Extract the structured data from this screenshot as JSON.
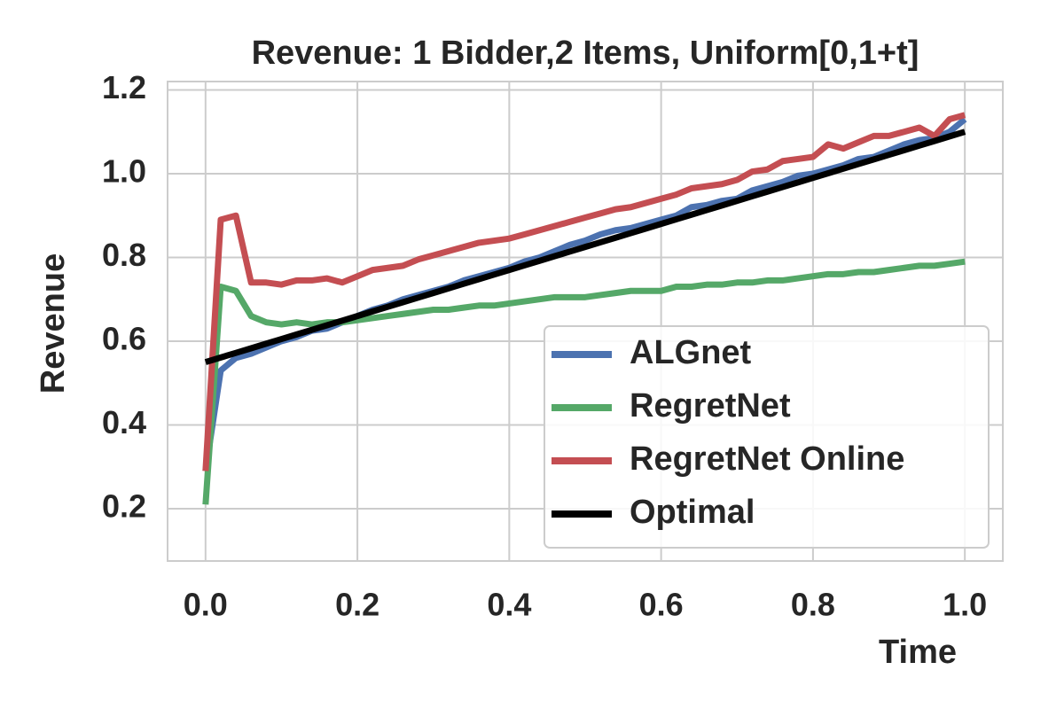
{
  "chart_data": {
    "type": "line",
    "title": "Revenue: 1 Bidder,2 Items, Uniform[0,1+t]",
    "x_label": "Time",
    "y_label": "Revenue",
    "x": [
      0,
      0.02,
      0.04,
      0.06,
      0.08,
      0.1,
      0.12,
      0.14,
      0.16,
      0.18,
      0.2,
      0.22,
      0.24,
      0.26,
      0.28,
      0.3,
      0.32,
      0.34,
      0.36,
      0.38,
      0.4,
      0.42,
      0.44,
      0.46,
      0.48,
      0.5,
      0.52,
      0.54,
      0.56,
      0.58,
      0.6,
      0.62,
      0.64,
      0.66,
      0.68,
      0.7,
      0.72,
      0.74,
      0.76,
      0.78,
      0.8,
      0.82,
      0.84,
      0.86,
      0.88,
      0.9,
      0.92,
      0.94,
      0.96,
      0.98,
      1.0
    ],
    "series": [
      {
        "name": "ALGnet",
        "color": "#4c72b0",
        "values": [
          0.29,
          0.53,
          0.56,
          0.57,
          0.585,
          0.6,
          0.61,
          0.625,
          0.63,
          0.645,
          0.66,
          0.675,
          0.685,
          0.7,
          0.71,
          0.72,
          0.73,
          0.745,
          0.755,
          0.765,
          0.775,
          0.79,
          0.8,
          0.815,
          0.83,
          0.84,
          0.855,
          0.865,
          0.87,
          0.88,
          0.89,
          0.9,
          0.92,
          0.925,
          0.935,
          0.94,
          0.96,
          0.97,
          0.98,
          0.995,
          1.0,
          1.01,
          1.02,
          1.035,
          1.04,
          1.055,
          1.07,
          1.08,
          1.085,
          1.1,
          1.13
        ]
      },
      {
        "name": "RegretNet",
        "color": "#55a868",
        "values": [
          0.21,
          0.73,
          0.72,
          0.66,
          0.645,
          0.64,
          0.645,
          0.64,
          0.645,
          0.645,
          0.65,
          0.655,
          0.66,
          0.665,
          0.67,
          0.675,
          0.675,
          0.68,
          0.685,
          0.685,
          0.69,
          0.695,
          0.7,
          0.705,
          0.705,
          0.705,
          0.71,
          0.715,
          0.72,
          0.72,
          0.72,
          0.73,
          0.73,
          0.735,
          0.735,
          0.74,
          0.74,
          0.745,
          0.745,
          0.75,
          0.755,
          0.76,
          0.76,
          0.765,
          0.765,
          0.77,
          0.775,
          0.78,
          0.78,
          0.785,
          0.79
        ]
      },
      {
        "name": "RegretNet Online",
        "color": "#c44e52",
        "values": [
          0.29,
          0.89,
          0.9,
          0.74,
          0.74,
          0.735,
          0.745,
          0.745,
          0.75,
          0.74,
          0.755,
          0.77,
          0.775,
          0.78,
          0.795,
          0.805,
          0.815,
          0.825,
          0.835,
          0.84,
          0.845,
          0.855,
          0.865,
          0.875,
          0.885,
          0.895,
          0.905,
          0.915,
          0.92,
          0.93,
          0.94,
          0.95,
          0.965,
          0.97,
          0.975,
          0.985,
          1.005,
          1.01,
          1.03,
          1.035,
          1.04,
          1.07,
          1.06,
          1.075,
          1.09,
          1.09,
          1.1,
          1.11,
          1.09,
          1.13,
          1.14
        ]
      },
      {
        "name": "Optimal",
        "color": "#000000",
        "values": [
          0.55,
          0.561,
          0.572,
          0.583,
          0.594,
          0.605,
          0.616,
          0.627,
          0.638,
          0.649,
          0.66,
          0.671,
          0.682,
          0.693,
          0.704,
          0.715,
          0.726,
          0.737,
          0.748,
          0.759,
          0.77,
          0.781,
          0.792,
          0.803,
          0.814,
          0.825,
          0.836,
          0.847,
          0.858,
          0.869,
          0.88,
          0.891,
          0.902,
          0.913,
          0.924,
          0.935,
          0.946,
          0.957,
          0.968,
          0.979,
          0.99,
          1.001,
          1.012,
          1.023,
          1.034,
          1.045,
          1.056,
          1.067,
          1.078,
          1.089,
          1.1
        ]
      }
    ],
    "xlim": [
      -0.05,
      1.05
    ],
    "ylim": [
      0.075,
      1.22
    ],
    "xticks": [
      {
        "value": 0,
        "label": "0.0"
      },
      0.2,
      0.4,
      0.6,
      0.8,
      {
        "value": 1,
        "label": "1.0"
      }
    ],
    "yticks": [
      0.2,
      0.4,
      0.6,
      0.8,
      {
        "value": 1,
        "label": "1.0"
      },
      1.2
    ],
    "grid": true,
    "legend": "lower right"
  }
}
